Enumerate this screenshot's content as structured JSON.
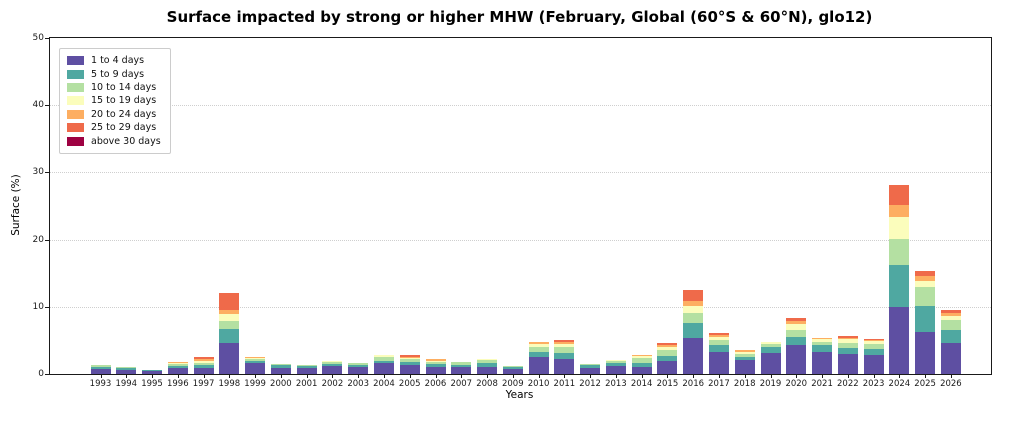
{
  "chart_data": {
    "type": "bar",
    "stacked": true,
    "title": "Surface impacted by strong or higher MHW (February, Global (60°S & 60°N), glo12)",
    "xlabel": "Years",
    "ylabel": "Surface (%)",
    "ylim": [
      0,
      50
    ],
    "yticks": [
      0,
      10,
      20,
      30,
      40,
      50
    ],
    "grid": "horizontal dotted at 10,20,30,40",
    "legend_position": "upper left",
    "categories": [
      1993,
      1994,
      1995,
      1996,
      1997,
      1998,
      1999,
      2000,
      2001,
      2002,
      2003,
      2004,
      2005,
      2006,
      2007,
      2008,
      2009,
      2010,
      2011,
      2012,
      2013,
      2014,
      2015,
      2016,
      2017,
      2018,
      2019,
      2020,
      2021,
      2022,
      2023,
      2024,
      2025,
      2026
    ],
    "series": [
      {
        "name": "1 to 4 days",
        "color": "#5e4fa2",
        "values": [
          0.75,
          0.65,
          0.45,
          0.9,
          0.9,
          4.6,
          1.6,
          0.9,
          0.9,
          1.15,
          1.0,
          1.6,
          1.4,
          1.1,
          1.0,
          1.1,
          0.7,
          2.6,
          2.3,
          0.95,
          1.25,
          1.1,
          2.0,
          5.3,
          3.35,
          2.1,
          3.2,
          4.3,
          3.35,
          2.95,
          2.85,
          10.0,
          6.3,
          4.6
        ]
      },
      {
        "name": "5 to 9 days",
        "color": "#4fa8a1",
        "values": [
          0.3,
          0.25,
          0.15,
          0.35,
          0.45,
          2.1,
          0.3,
          0.4,
          0.35,
          0.35,
          0.4,
          0.4,
          0.4,
          0.4,
          0.4,
          0.5,
          0.3,
          0.7,
          0.9,
          0.4,
          0.4,
          0.6,
          0.7,
          2.3,
          0.9,
          0.5,
          0.75,
          1.2,
          0.9,
          0.9,
          0.9,
          6.2,
          3.8,
          2.0
        ]
      },
      {
        "name": "10 to 14 days",
        "color": "#b4e0a2",
        "values": [
          0.25,
          0.1,
          0,
          0.25,
          0.35,
          1.25,
          0.3,
          0.2,
          0.1,
          0.3,
          0.2,
          0.5,
          0.4,
          0.3,
          0.4,
          0.5,
          0.2,
          0.7,
          0.8,
          0.2,
          0.3,
          0.7,
          0.8,
          1.5,
          0.8,
          0.4,
          0.5,
          1.0,
          0.5,
          0.75,
          0.7,
          3.9,
          2.9,
          1.5
        ]
      },
      {
        "name": "15 to 19 days",
        "color": "#fbfdbc",
        "values": [
          0,
          0,
          0,
          0.15,
          0.3,
          1.05,
          0.2,
          0,
          0,
          0.2,
          0,
          0.3,
          0.2,
          0.2,
          0,
          0.2,
          0,
          0.4,
          0.5,
          0,
          0.15,
          0.25,
          0.5,
          1.0,
          0.4,
          0.3,
          0.3,
          0.9,
          0.5,
          0.65,
          0.5,
          3.2,
          0.9,
          0.5
        ]
      },
      {
        "name": "20 to 24 days",
        "color": "#fdae61",
        "values": [
          0,
          0,
          0,
          0.1,
          0.3,
          0.6,
          0.1,
          0,
          0,
          0,
          0,
          0,
          0.2,
          0.2,
          0,
          0,
          0,
          0.3,
          0.3,
          0,
          0,
          0.25,
          0.3,
          0.7,
          0.3,
          0.3,
          0,
          0.5,
          0.1,
          0.15,
          0.2,
          1.8,
          0.7,
          0.5
        ]
      },
      {
        "name": "25 to 29 days",
        "color": "#ef6a4a",
        "values": [
          0,
          0,
          0,
          0,
          0.25,
          2.4,
          0,
          0,
          0,
          0,
          0,
          0,
          0.3,
          0,
          0,
          0,
          0,
          0,
          0.3,
          0,
          0,
          0,
          0.35,
          1.7,
          0.4,
          0,
          0,
          0.45,
          0,
          0.2,
          0.1,
          3.0,
          0.8,
          0.5
        ]
      },
      {
        "name": "above 30 days",
        "color": "#9e0142",
        "values": [
          0,
          0,
          0,
          0,
          0,
          0,
          0,
          0,
          0,
          0,
          0,
          0,
          0,
          0,
          0,
          0,
          0,
          0,
          0,
          0,
          0,
          0,
          0,
          0,
          0,
          0,
          0,
          0,
          0,
          0,
          0,
          0,
          0,
          0
        ]
      }
    ]
  }
}
